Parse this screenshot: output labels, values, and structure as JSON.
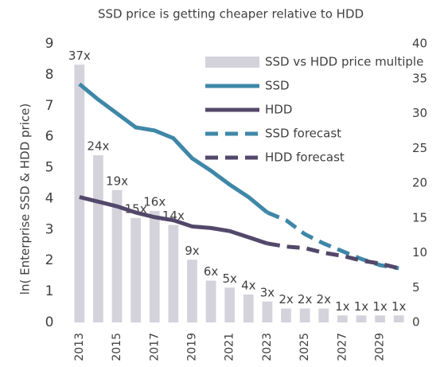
{
  "chart_data": {
    "type": "bar-line",
    "title": "SSD price is getting cheaper relative to HDD",
    "y_label": "ln( Enterprise SSD & HDD price)",
    "categories": [
      "2013",
      null,
      "2015",
      null,
      "2017",
      null,
      "2019",
      null,
      "2021",
      null,
      "2023",
      null,
      "2025",
      null,
      "2027",
      null,
      "2029",
      null
    ],
    "ylim": [
      0,
      9
    ],
    "yticks": [
      0,
      1,
      2,
      3,
      4,
      5,
      6,
      7,
      8,
      9
    ],
    "y2lim": [
      0,
      40
    ],
    "y2ticks": [
      0,
      5,
      10,
      15,
      20,
      25,
      30,
      35,
      40
    ],
    "series": [
      {
        "name": "SSD vs HDD price multiple",
        "type": "bar",
        "axis": "y2",
        "color": "#d4d3dc",
        "values": [
          37,
          24,
          19,
          15,
          16,
          14,
          9,
          6,
          5,
          4,
          3,
          2,
          2,
          2,
          1,
          1,
          1,
          1
        ],
        "value_labels": [
          "37x",
          "24x",
          "19x",
          "15x",
          "16x",
          "14x",
          "9x",
          "6x",
          "5x",
          "4x",
          "3x",
          "2x",
          "2x",
          "2x",
          "1x",
          "1x",
          "1x",
          "1x"
        ]
      },
      {
        "name": "SSD",
        "type": "line",
        "color": "#3f87a8",
        "dash": false,
        "values": [
          7.7,
          7.2,
          6.75,
          6.3,
          6.2,
          5.95,
          5.3,
          4.9,
          4.45,
          4.05,
          3.55,
          null,
          null,
          null,
          null,
          null,
          null,
          null
        ]
      },
      {
        "name": "HDD",
        "type": "line",
        "color": "#53486a",
        "dash": false,
        "values": [
          4.05,
          3.9,
          3.75,
          3.55,
          3.4,
          3.3,
          3.1,
          3.05,
          2.95,
          2.75,
          2.55,
          null,
          null,
          null,
          null,
          null,
          null,
          null
        ]
      },
      {
        "name": "SSD forecast",
        "type": "line",
        "color": "#3f87a8",
        "dash": true,
        "values": [
          null,
          null,
          null,
          null,
          null,
          null,
          null,
          null,
          null,
          null,
          3.55,
          3.3,
          2.85,
          2.55,
          2.3,
          2.05,
          1.85,
          1.75
        ]
      },
      {
        "name": "HDD forecast",
        "type": "line",
        "color": "#53486a",
        "dash": true,
        "values": [
          null,
          null,
          null,
          null,
          null,
          null,
          null,
          null,
          null,
          null,
          2.55,
          2.45,
          2.4,
          2.25,
          2.15,
          2.0,
          1.9,
          1.75
        ]
      }
    ]
  }
}
